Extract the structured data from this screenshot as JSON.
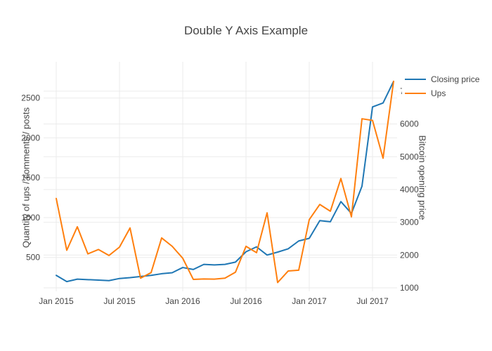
{
  "chart_data": {
    "type": "line",
    "title": "Double Y Axis Example",
    "x": [
      "Jan 2015",
      "Feb 2015",
      "Mar 2015",
      "Apr 2015",
      "May 2015",
      "Jun 2015",
      "Jul 2015",
      "Aug 2015",
      "Sep 2015",
      "Oct 2015",
      "Nov 2015",
      "Dec 2015",
      "Jan 2016",
      "Feb 2016",
      "Mar 2016",
      "Apr 2016",
      "May 2016",
      "Jun 2016",
      "Jul 2016",
      "Aug 2016",
      "Sep 2016",
      "Oct 2016",
      "Nov 2016",
      "Dec 2016",
      "Jan 2017",
      "Feb 2017",
      "Mar 2017",
      "Apr 2017",
      "May 2017",
      "Jun 2017",
      "Jul 2017",
      "Aug 2017",
      "Sep 2017"
    ],
    "x_tick_every": 6,
    "x_tick_labels": [
      "Jan 2015",
      "Jul 2015",
      "Jan 2016",
      "Jul 2016",
      "Jan 2017",
      "Jul 2017"
    ],
    "series": [
      {
        "name": "Closing price",
        "color": "#1f77b4",
        "axis": "right",
        "values": [
          1380,
          1190,
          1265,
          1250,
          1235,
          1220,
          1285,
          1310,
          1345,
          1380,
          1430,
          1460,
          1620,
          1560,
          1715,
          1700,
          1715,
          1785,
          2100,
          2250,
          2000,
          2090,
          2190,
          2430,
          2510,
          3050,
          3015,
          3630,
          3270,
          4100,
          6520,
          6640,
          7300
        ]
      },
      {
        "name": "Ups",
        "color": "#ff7f0e",
        "axis": "left",
        "values": [
          1240,
          590,
          885,
          545,
          600,
          525,
          630,
          870,
          240,
          310,
          745,
          640,
          490,
          225,
          230,
          228,
          240,
          315,
          640,
          560,
          1060,
          185,
          330,
          340,
          975,
          1165,
          1080,
          1490,
          1010,
          2240,
          2220,
          1745,
          2710
        ]
      }
    ],
    "yaxis_left": {
      "label": "Quantity of ups / comments / posts",
      "ticks": [
        500,
        1000,
        1500,
        2000,
        2500
      ],
      "range": [
        75,
        2955
      ]
    },
    "yaxis_right": {
      "label": "Bitcoin opening price",
      "ticks": [
        1000,
        2000,
        3000,
        4000,
        5000,
        6000,
        7000
      ],
      "range": [
        893,
        7897
      ]
    },
    "grid": true,
    "legend_position": "top-right",
    "grid_color": "#ebebeb",
    "text_color": "#444444",
    "background_color": "#ffffff"
  }
}
